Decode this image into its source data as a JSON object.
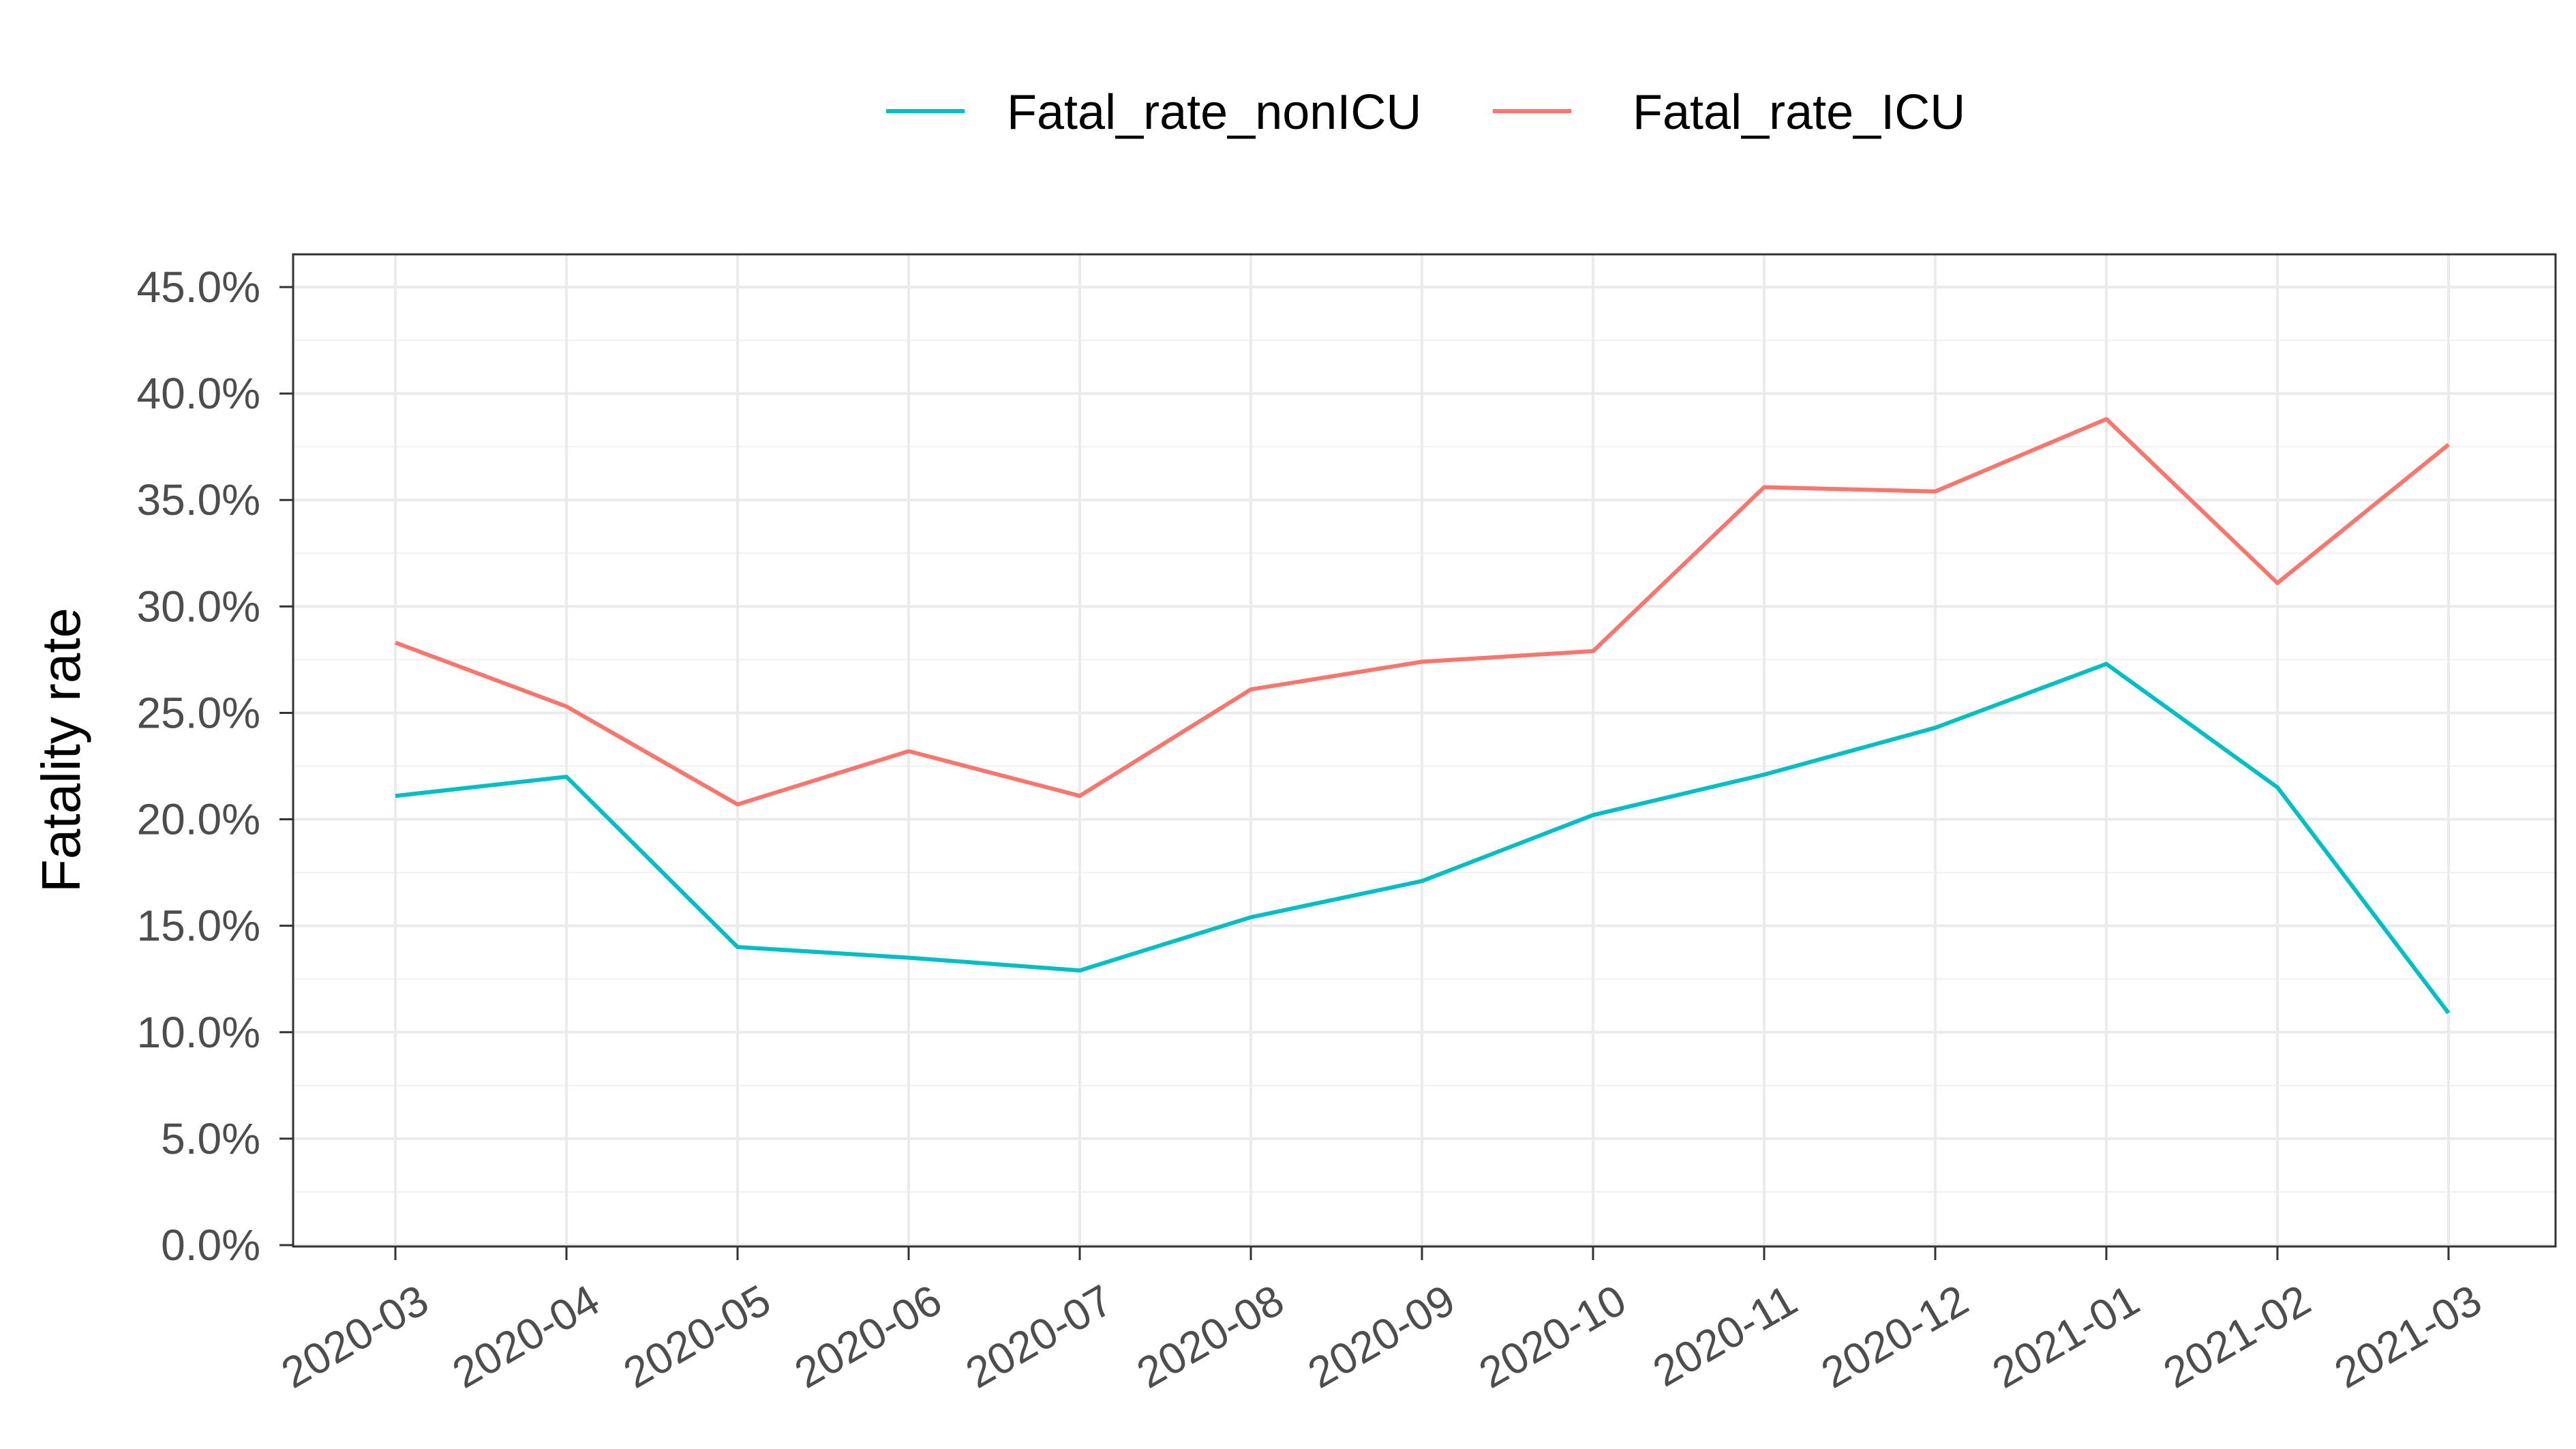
{
  "chart_data": {
    "type": "line",
    "title": "",
    "xlabel": "",
    "ylabel": "Fatality rate",
    "ylim": [
      0,
      0.45
    ],
    "y_ticks": [
      0,
      0.05,
      0.1,
      0.15,
      0.2,
      0.25,
      0.3,
      0.35,
      0.4,
      0.45
    ],
    "y_tick_labels": [
      "0.0%",
      "5.0%",
      "10.0%",
      "15.0%",
      "20.0%",
      "25.0%",
      "30.0%",
      "35.0%",
      "40.0%",
      "45.0%"
    ],
    "grid": true,
    "legend_position": "top",
    "categories": [
      "2020-03",
      "2020-04",
      "2020-05",
      "2020-06",
      "2020-07",
      "2020-08",
      "2020-09",
      "2020-10",
      "2020-11",
      "2020-12",
      "2021-01",
      "2021-02",
      "2021-03"
    ],
    "series": [
      {
        "name": "Fatal_rate_nonICU",
        "color": "#00BFC4",
        "values": [
          0.211,
          0.22,
          0.14,
          0.135,
          0.129,
          0.154,
          0.171,
          0.202,
          0.221,
          0.243,
          0.273,
          0.215,
          0.109
        ]
      },
      {
        "name": "Fatal_rate_ICU",
        "color": "#F8766D",
        "values": [
          0.283,
          0.253,
          0.207,
          0.232,
          0.211,
          0.261,
          0.274,
          0.279,
          0.356,
          0.354,
          0.388,
          0.311,
          0.376
        ]
      }
    ]
  }
}
